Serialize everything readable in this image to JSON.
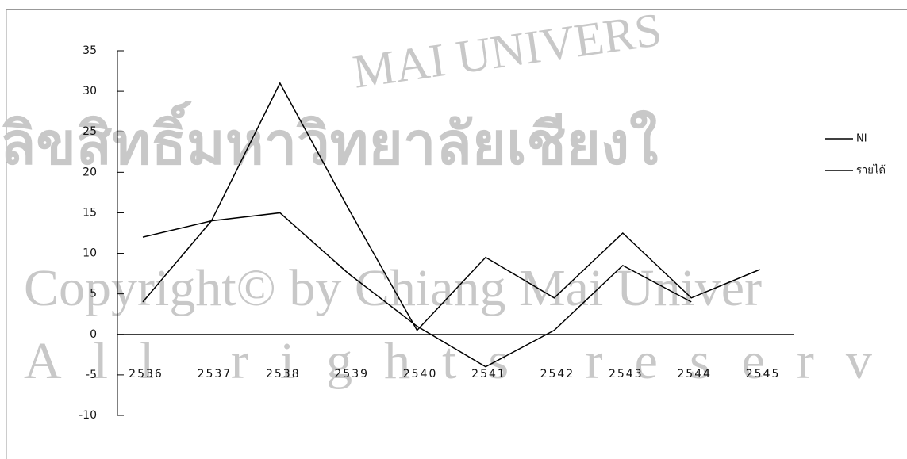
{
  "watermark": {
    "arc": "MAI UNIVERS",
    "thai": "ลิขสิทธิ์มหาวิทยาลัยเชียงใ",
    "copyright": "Copyright© by Chiang Mai Univer",
    "rights": "All rights reserv"
  },
  "chart_data": {
    "type": "line",
    "categories": [
      "2536",
      "2537",
      "2538",
      "2539",
      "2540",
      "2541",
      "2542",
      "2543",
      "2544",
      "2545"
    ],
    "series": [
      {
        "name": "NI",
        "color": "#000000",
        "values": [
          4,
          14,
          31,
          15.5,
          0.5,
          9.5,
          4.5,
          12.5,
          4.5,
          8
        ]
      },
      {
        "name": "รายได้",
        "color": "#000000",
        "values": [
          12,
          14,
          15,
          7.5,
          1,
          -4,
          0.5,
          8.5,
          4,
          null
        ]
      }
    ],
    "ylim": [
      -10,
      35
    ],
    "yticks": [
      -10,
      -5,
      0,
      5,
      10,
      15,
      20,
      25,
      30,
      35
    ]
  }
}
